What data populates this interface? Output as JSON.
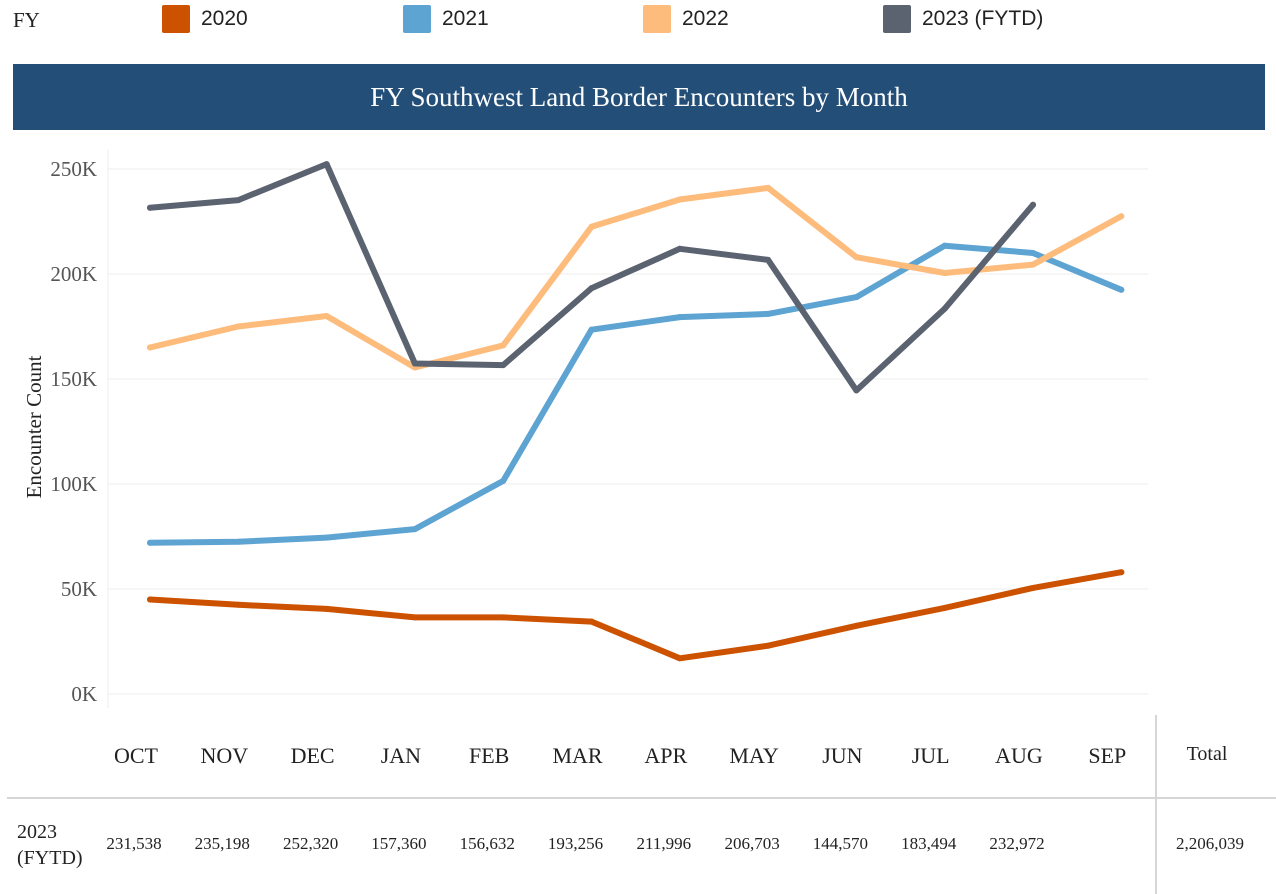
{
  "legend": {
    "title": "FY",
    "items": [
      {
        "label": "2020",
        "color": "#cc5200"
      },
      {
        "label": "2021",
        "color": "#5ea4d3"
      },
      {
        "label": "2022",
        "color": "#fdbb7c"
      },
      {
        "label": "2023 (FYTD)",
        "color": "#5b6270"
      }
    ]
  },
  "chart_data": {
    "type": "line",
    "title": "FY Southwest Land Border Encounters by Month",
    "xlabel": "",
    "ylabel": "Encounter Count",
    "ylim": [
      0,
      260000
    ],
    "yticks": [
      0,
      50000,
      100000,
      150000,
      200000,
      250000
    ],
    "ytick_labels": [
      "0K",
      "50K",
      "100K",
      "150K",
      "200K",
      "250K"
    ],
    "grid": true,
    "categories": [
      "OCT",
      "NOV",
      "DEC",
      "JAN",
      "FEB",
      "MAR",
      "APR",
      "MAY",
      "JUN",
      "JUL",
      "AUG",
      "SEP"
    ],
    "series": [
      {
        "name": "2020",
        "color": "#cc5200",
        "values": [
          45000,
          42500,
          40500,
          36500,
          36500,
          34500,
          17000,
          23000,
          32500,
          41000,
          50500,
          58000
        ]
      },
      {
        "name": "2021",
        "color": "#5ea4d3",
        "values": [
          72000,
          72500,
          74500,
          78500,
          101500,
          173500,
          179500,
          181000,
          189000,
          213500,
          210000,
          192500
        ]
      },
      {
        "name": "2022",
        "color": "#fdbb7c",
        "values": [
          165000,
          175000,
          180000,
          155500,
          166000,
          222500,
          235500,
          241000,
          208000,
          200500,
          204500,
          227500
        ]
      },
      {
        "name": "2023 (FYTD)",
        "color": "#5b6270",
        "values": [
          231538,
          235198,
          252320,
          157360,
          156632,
          193256,
          211996,
          206703,
          144570,
          183494,
          232972,
          null
        ]
      }
    ]
  },
  "table": {
    "total_header": "Total",
    "row_label_line1": "2023",
    "row_label_line2": "(FYTD)",
    "cells": [
      "231,538",
      "235,198",
      "252,320",
      "157,360",
      "156,632",
      "193,256",
      "211,996",
      "206,703",
      "144,570",
      "183,494",
      "232,972",
      ""
    ],
    "total": "2,206,039"
  }
}
